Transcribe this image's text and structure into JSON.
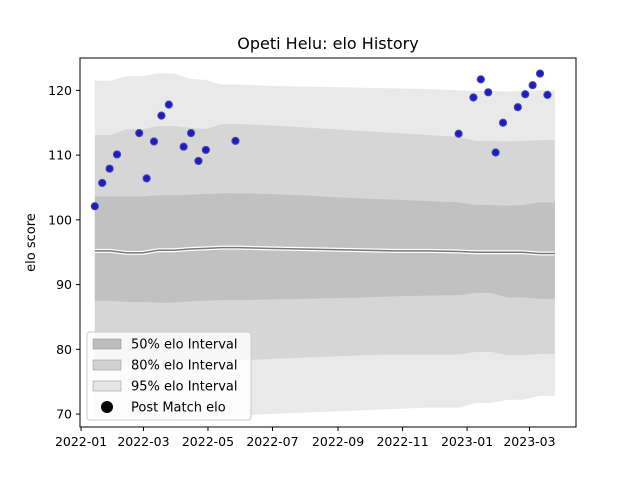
{
  "chart_data": {
    "type": "area",
    "title": "Opeti Helu: elo History",
    "xlabel": "",
    "ylabel": "elo score",
    "x_ticks": [
      "2022-01",
      "2022-03",
      "2022-05",
      "2022-07",
      "2022-09",
      "2022-11",
      "2023-01",
      "2023-03"
    ],
    "y_ticks": [
      70,
      80,
      90,
      100,
      110,
      120
    ],
    "xlim": [
      "2021-12-31",
      "2023-04-14"
    ],
    "ylim": [
      68,
      125
    ],
    "grid": false,
    "legend_position": "lower-left",
    "legend": [
      "50% elo Interval",
      "80% elo Interval",
      "95% elo Interval",
      "Post Match elo"
    ],
    "colors": {
      "band50": "#bdbdbd",
      "band80": "#d2d2d2",
      "band95": "#e5e5e5",
      "mean_line": "#777777",
      "marker_fill": "#1c1ccc",
      "marker_edge": "#4a4a9a"
    },
    "band_x": [
      "2022-01-14",
      "2022-01-29",
      "2022-02-13",
      "2022-02-28",
      "2022-03-15",
      "2022-03-30",
      "2022-04-14",
      "2022-04-29",
      "2022-05-14",
      "2022-05-29",
      "2022-06-28",
      "2022-07-28",
      "2022-08-27",
      "2022-09-26",
      "2022-10-26",
      "2022-11-25",
      "2022-12-25",
      "2023-01-09",
      "2023-01-24",
      "2023-02-08",
      "2023-02-23",
      "2023-03-10",
      "2023-03-25"
    ],
    "series": [
      {
        "name": "95% elo Interval",
        "upper": [
          121.5,
          121.5,
          122.2,
          122.2,
          122.6,
          122.6,
          121.8,
          121.6,
          120.9,
          120.9,
          120.7,
          120.6,
          120.5,
          120.4,
          120.3,
          120.2,
          120.0,
          119.9,
          119.9,
          119.8,
          119.9,
          120.0,
          120.0
        ],
        "lower": [
          69.5,
          69.5,
          69.5,
          69.3,
          69.3,
          69.3,
          69.5,
          69.5,
          69.8,
          69.8,
          70.0,
          70.2,
          70.4,
          70.6,
          70.8,
          71.0,
          71.0,
          71.7,
          71.7,
          72.2,
          72.2,
          72.8,
          72.8
        ]
      },
      {
        "name": "80% elo Interval",
        "upper": [
          113.1,
          113.1,
          114.0,
          114.0,
          114.5,
          114.5,
          114.2,
          114.0,
          114.8,
          114.8,
          114.6,
          114.3,
          114.0,
          113.7,
          113.4,
          113.1,
          112.8,
          112.2,
          112.2,
          112.1,
          112.2,
          112.3,
          112.3
        ],
        "lower": [
          78.0,
          78.0,
          77.5,
          77.5,
          77.3,
          77.3,
          77.8,
          78.0,
          78.3,
          78.3,
          78.5,
          78.7,
          78.9,
          79.1,
          79.2,
          79.2,
          79.2,
          79.6,
          79.6,
          79.1,
          79.1,
          79.3,
          79.3
        ]
      },
      {
        "name": "50% elo Interval",
        "upper": [
          103.6,
          103.6,
          103.6,
          103.6,
          103.8,
          103.8,
          103.9,
          104.0,
          104.1,
          104.1,
          104.0,
          103.8,
          103.5,
          103.3,
          103.1,
          102.9,
          102.7,
          102.3,
          102.3,
          102.2,
          102.3,
          102.7,
          102.7
        ],
        "lower": [
          87.5,
          87.5,
          87.3,
          87.3,
          87.2,
          87.2,
          87.4,
          87.5,
          87.6,
          87.6,
          87.7,
          87.8,
          87.9,
          88.0,
          88.2,
          88.3,
          88.4,
          88.7,
          88.7,
          88.0,
          88.0,
          87.8,
          87.8
        ]
      }
    ],
    "mean": [
      95.2,
      95.2,
      94.9,
      94.9,
      95.3,
      95.3,
      95.5,
      95.6,
      95.7,
      95.7,
      95.6,
      95.5,
      95.4,
      95.3,
      95.2,
      95.2,
      95.1,
      95.0,
      95.0,
      95.0,
      95.0,
      94.8,
      94.8
    ],
    "points": {
      "name": "Post Match elo",
      "x": [
        "2022-01-14",
        "2022-01-21",
        "2022-01-28",
        "2022-02-04",
        "2022-02-25",
        "2022-03-04",
        "2022-03-11",
        "2022-03-18",
        "2022-03-25",
        "2022-04-08",
        "2022-04-15",
        "2022-04-22",
        "2022-04-29",
        "2022-05-27",
        "2022-12-24",
        "2023-01-07",
        "2023-01-14",
        "2023-01-21",
        "2023-01-28",
        "2023-02-04",
        "2023-02-18",
        "2023-02-25",
        "2023-03-04",
        "2023-03-11",
        "2023-03-18"
      ],
      "y": [
        102.1,
        105.7,
        107.9,
        110.1,
        113.4,
        106.4,
        112.1,
        116.1,
        117.8,
        111.3,
        113.4,
        109.1,
        110.8,
        112.2,
        113.3,
        118.9,
        121.7,
        119.7,
        110.4,
        115.0,
        117.4,
        119.4,
        120.8,
        122.6,
        119.3
      ]
    }
  }
}
